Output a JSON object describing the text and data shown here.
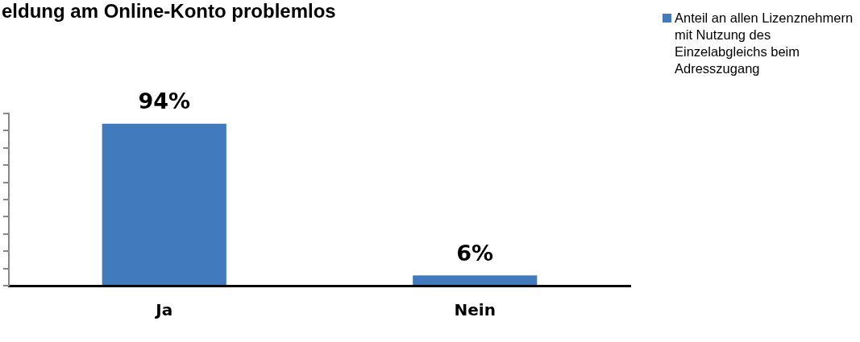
{
  "chart_data": {
    "type": "bar",
    "title": "eldung am Online-Konto problemlos",
    "categories": [
      "Ja",
      "Nein"
    ],
    "series": [
      {
        "name": "Anteil an allen Lizenznehmern mit Nutzung des Einzelabgleichs beim Adresszugang",
        "color": "#417bbd",
        "values": [
          94,
          6
        ],
        "value_labels": [
          "94%",
          "6%"
        ]
      }
    ],
    "ylim": [
      0,
      100
    ],
    "tick_labels": "x",
    "legend": "top right",
    "grid": false
  }
}
